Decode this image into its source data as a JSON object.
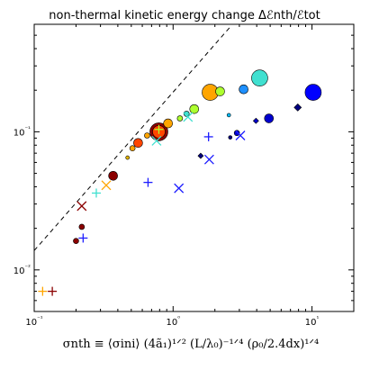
{
  "chart_data": {
    "type": "scatter",
    "title": "non-thermal kinetic energy change Δℰnth/ℰtot",
    "xlabel": "σnth ≡ ⟨σini⟩ (4ã₁)¹ᐟ² (L/λ₀)⁻¹ᐟ⁴ (ρ₀/2.4dx)¹ᐟ⁴",
    "ylabel": "",
    "xscale": "log",
    "yscale": "log",
    "xlim": [
      0.1,
      20
    ],
    "ylim": [
      0.005,
      0.6
    ],
    "x_ticks": [
      {
        "value": 0.1,
        "label": "10⁻¹"
      },
      {
        "value": 1,
        "label": "10⁰"
      },
      {
        "value": 10,
        "label": "10¹"
      }
    ],
    "y_ticks": [
      {
        "value": 0.01,
        "label": "10⁻²"
      },
      {
        "value": 0.1,
        "label": "10⁻¹"
      }
    ],
    "grid": false,
    "legend": "none",
    "reference_line": {
      "style": "dashed",
      "color": "#000000",
      "points": [
        [
          0.1,
          0.0138
        ],
        [
          2.6,
          0.58
        ]
      ]
    },
    "circles": [
      {
        "x": 0.2,
        "y": 0.0162,
        "color": "#8b0000",
        "size": 3
      },
      {
        "x": 0.22,
        "y": 0.0205,
        "color": "#8b0000",
        "size": 3
      },
      {
        "x": 0.37,
        "y": 0.048,
        "color": "#8b0000",
        "size": 5
      },
      {
        "x": 0.47,
        "y": 0.065,
        "color": "#e4b400",
        "size": 2
      },
      {
        "x": 0.51,
        "y": 0.076,
        "color": "#ffa500",
        "size": 3
      },
      {
        "x": 0.56,
        "y": 0.083,
        "color": "#ff4500",
        "size": 5
      },
      {
        "x": 0.65,
        "y": 0.094,
        "color": "#ffa500",
        "size": 3
      },
      {
        "x": 0.79,
        "y": 0.1,
        "color": "#8b0000",
        "size": 10
      },
      {
        "x": 0.79,
        "y": 0.1,
        "color": "#ff4500",
        "size": 7
      },
      {
        "x": 0.92,
        "y": 0.115,
        "color": "#ffa500",
        "size": 5
      },
      {
        "x": 1.12,
        "y": 0.125,
        "color": "#adff2f",
        "size": 3
      },
      {
        "x": 1.25,
        "y": 0.135,
        "color": "#40e0d0",
        "size": 3
      },
      {
        "x": 1.42,
        "y": 0.146,
        "color": "#adff2f",
        "size": 5
      },
      {
        "x": 1.85,
        "y": 0.193,
        "color": "#ffa500",
        "size": 9
      },
      {
        "x": 2.18,
        "y": 0.196,
        "color": "#adff2f",
        "size": 5
      },
      {
        "x": 2.52,
        "y": 0.132,
        "color": "#00bfff",
        "size": 2
      },
      {
        "x": 3.22,
        "y": 0.203,
        "color": "#1e90ff",
        "size": 5
      },
      {
        "x": 4.2,
        "y": 0.245,
        "color": "#40e0d0",
        "size": 9
      },
      {
        "x": 2.58,
        "y": 0.091,
        "color": "#000080",
        "size": 2
      },
      {
        "x": 2.88,
        "y": 0.098,
        "color": "#0000cd",
        "size": 3
      },
      {
        "x": 4.9,
        "y": 0.125,
        "color": "#0000cd",
        "size": 5
      },
      {
        "x": 10.2,
        "y": 0.193,
        "color": "#0000ff",
        "size": 9
      }
    ],
    "diamonds": [
      {
        "x": 1.58,
        "y": 0.067,
        "color": "#000080",
        "size": 3
      },
      {
        "x": 3.95,
        "y": 0.12,
        "color": "#0000cd",
        "size": 3
      },
      {
        "x": 7.9,
        "y": 0.15,
        "color": "#000080",
        "size": 4
      }
    ],
    "crosses": [
      {
        "x": 0.22,
        "y": 0.029,
        "color": "#8b0000"
      },
      {
        "x": 0.33,
        "y": 0.041,
        "color": "#ffa500"
      },
      {
        "x": 0.76,
        "y": 0.086,
        "color": "#40e0d0"
      },
      {
        "x": 1.28,
        "y": 0.128,
        "color": "#40e0d0"
      },
      {
        "x": 1.1,
        "y": 0.039,
        "color": "#1e1eff"
      },
      {
        "x": 1.82,
        "y": 0.063,
        "color": "#1e1eff"
      },
      {
        "x": 3.05,
        "y": 0.094,
        "color": "#1e1eff"
      }
    ],
    "pluses": [
      {
        "x": 0.115,
        "y": 0.007,
        "color": "#ffa500"
      },
      {
        "x": 0.135,
        "y": 0.007,
        "color": "#8b0000"
      },
      {
        "x": 0.225,
        "y": 0.017,
        "color": "#1e1eff"
      },
      {
        "x": 0.28,
        "y": 0.036,
        "color": "#40e0d0"
      },
      {
        "x": 0.79,
        "y": 0.104,
        "color": "#adff2f"
      },
      {
        "x": 0.66,
        "y": 0.043,
        "color": "#1e1eff"
      },
      {
        "x": 1.8,
        "y": 0.092,
        "color": "#1e1eff"
      }
    ]
  }
}
